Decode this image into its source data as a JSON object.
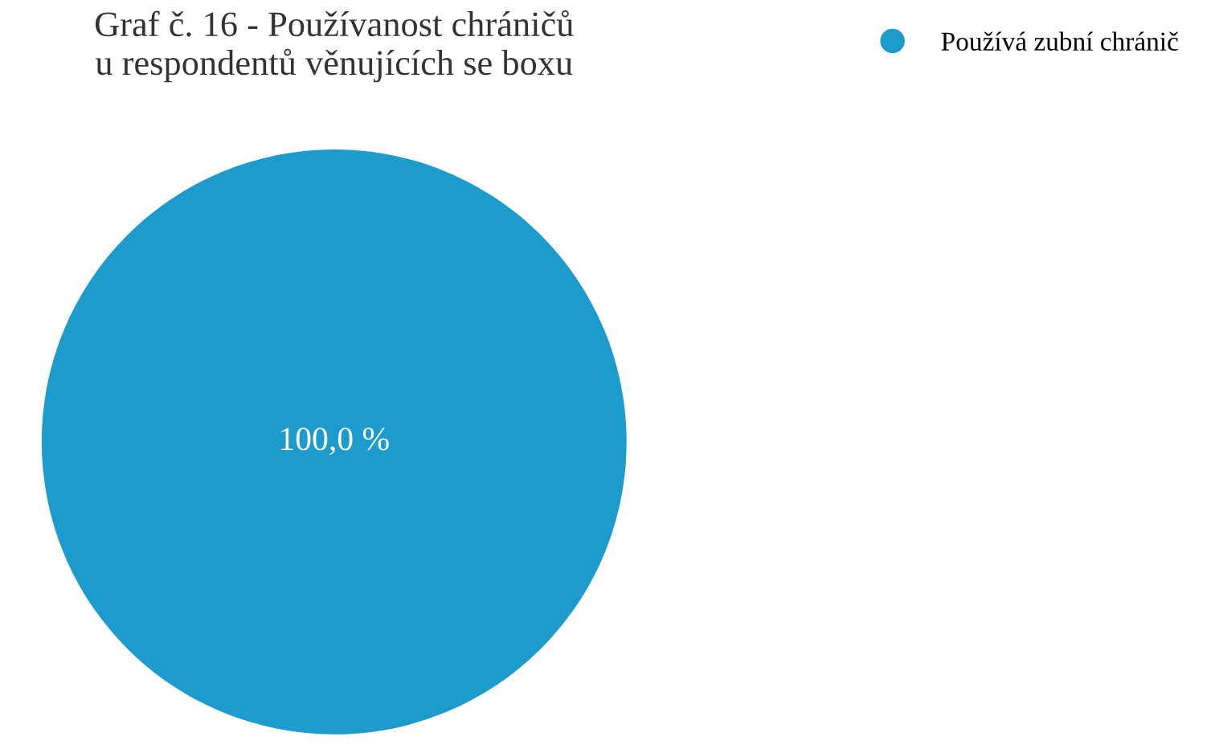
{
  "chart_data": {
    "type": "pie",
    "title": "Graf č. 16 - Používanost chráničů\nu respondentů věnujících se boxu",
    "categories": [
      "Používá zubní chránič"
    ],
    "values": [
      100
    ],
    "colors": [
      "#1e9bcd"
    ],
    "value_labels": [
      "100,0 %"
    ],
    "legend": "top right"
  }
}
